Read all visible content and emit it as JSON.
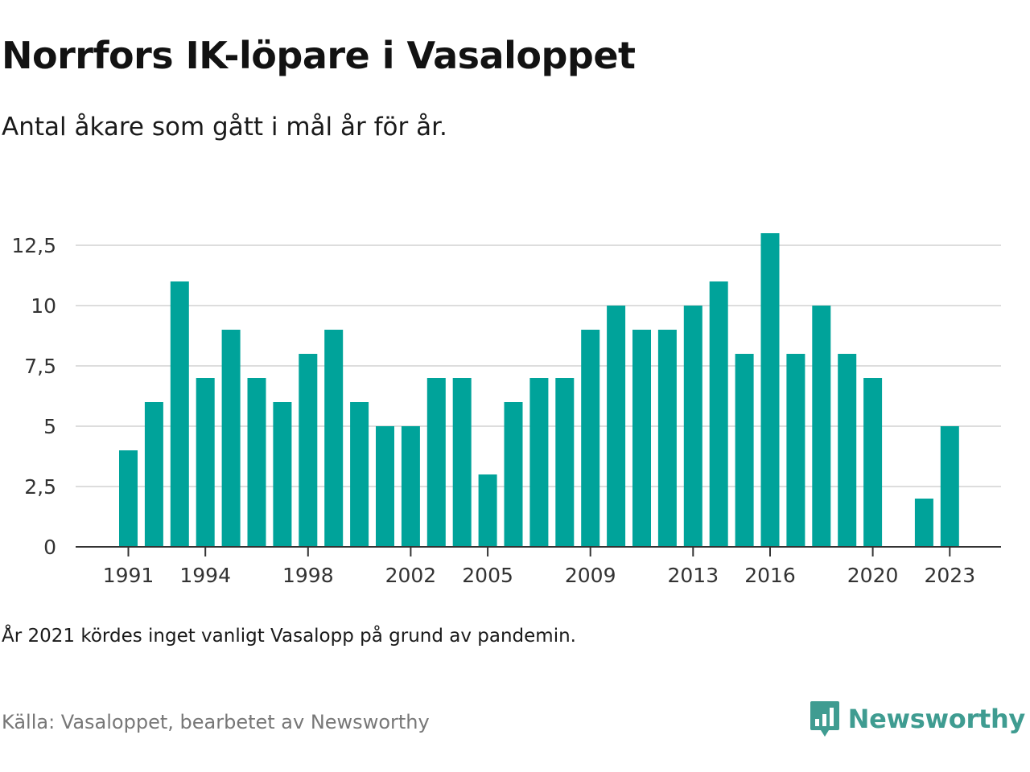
{
  "header": {
    "title": "Norrfors IK-löpare i Vasaloppet",
    "subtitle": "Antal åkare som gått i mål år för år."
  },
  "footer": {
    "note": "År 2021 kördes inget vanligt Vasalopp på grund av pandemin.",
    "source": "Källa: Vasaloppet, bearbetet av Newsworthy",
    "brand": "Newsworthy"
  },
  "colors": {
    "bar": "#00a39a",
    "grid": "#dddddd",
    "axis": "#333333",
    "brand": "#3f9c91"
  },
  "chart_data": {
    "type": "bar",
    "x": [
      1991,
      1992,
      1993,
      1994,
      1995,
      1996,
      1997,
      1998,
      1999,
      2000,
      2001,
      2002,
      2003,
      2004,
      2005,
      2006,
      2007,
      2008,
      2009,
      2010,
      2011,
      2012,
      2013,
      2014,
      2015,
      2016,
      2017,
      2018,
      2019,
      2020,
      2021,
      2022,
      2023
    ],
    "values": [
      4,
      6,
      11,
      7,
      9,
      7,
      6,
      8,
      9,
      6,
      5,
      5,
      7,
      7,
      3,
      6,
      7,
      7,
      9,
      10,
      9,
      9,
      10,
      11,
      8,
      13,
      8,
      10,
      8,
      7,
      null,
      2,
      5
    ],
    "xticks": [
      "1991",
      "1994",
      "1998",
      "2002",
      "2005",
      "2009",
      "2013",
      "2016",
      "2020",
      "2023"
    ],
    "yticks": [
      0,
      2.5,
      5,
      7.5,
      10,
      12.5
    ],
    "ytick_labels": [
      "0",
      "2,5",
      "5",
      "7,5",
      "10",
      "12,5"
    ],
    "ylim": [
      0,
      13
    ],
    "grid": true
  }
}
